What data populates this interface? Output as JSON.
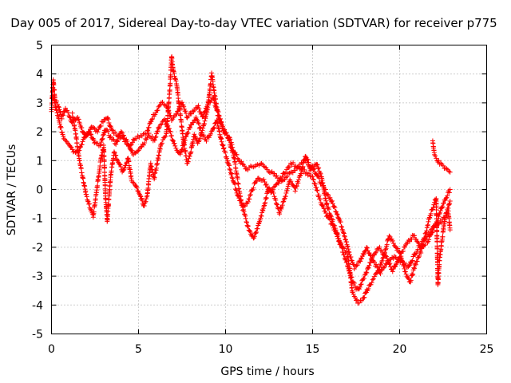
{
  "chart_data": {
    "type": "scatter",
    "title": "Day 005 of 2017, Sidereal Day-to-day VTEC variation (SDTVAR) for receiver p775",
    "xlabel": "GPS time / hours",
    "ylabel": "SDTVAR / TECUs",
    "xlim": [
      0,
      25
    ],
    "ylim": [
      -5,
      5
    ],
    "xticks": [
      "0",
      "5",
      "10",
      "15",
      "20",
      "25"
    ],
    "yticks": [
      "-5",
      "-4",
      "-3",
      "-2",
      "-1",
      "0",
      "1",
      "2",
      "3",
      "4",
      "5"
    ],
    "grid": true,
    "marker": "+",
    "series": [
      {
        "name": "SDTVAR",
        "color": "#ff0000",
        "tracks": [
          [
            [
              0.0,
              2.7
            ],
            [
              0.1,
              3.8
            ],
            [
              0.2,
              3.1
            ],
            [
              0.4,
              2.9
            ],
            [
              0.6,
              2.5
            ],
            [
              0.8,
              2.8
            ],
            [
              1.0,
              2.6
            ],
            [
              1.2,
              2.3
            ],
            [
              1.5,
              2.5
            ],
            [
              1.8,
              2.0
            ],
            [
              2.0,
              1.8
            ],
            [
              2.3,
              2.2
            ],
            [
              2.6,
              2.0
            ],
            [
              2.9,
              2.3
            ],
            [
              3.2,
              2.5
            ],
            [
              3.5,
              2.0
            ],
            [
              3.8,
              1.9
            ],
            [
              4.2,
              1.7
            ],
            [
              4.5,
              1.5
            ],
            [
              4.8,
              1.8
            ],
            [
              5.2,
              1.9
            ],
            [
              5.5,
              2.0
            ],
            [
              5.8,
              2.5
            ],
            [
              6.0,
              2.7
            ],
            [
              6.3,
              3.0
            ],
            [
              6.6,
              2.9
            ],
            [
              6.9,
              2.4
            ],
            [
              7.2,
              2.6
            ],
            [
              7.5,
              3.0
            ],
            [
              7.8,
              2.5
            ],
            [
              8.1,
              2.7
            ],
            [
              8.4,
              2.9
            ],
            [
              8.7,
              2.5
            ],
            [
              9.0,
              3.0
            ],
            [
              9.3,
              3.2
            ],
            [
              9.6,
              2.5
            ],
            [
              9.9,
              2.0
            ],
            [
              10.2,
              1.8
            ],
            [
              10.5,
              1.3
            ],
            [
              10.8,
              1.0
            ],
            [
              11.2,
              0.7
            ],
            [
              11.6,
              0.8
            ],
            [
              12.0,
              0.9
            ],
            [
              12.4,
              0.7
            ],
            [
              12.8,
              0.5
            ],
            [
              13.2,
              0.3
            ],
            [
              13.6,
              0.5
            ],
            [
              14.0,
              0.7
            ],
            [
              14.5,
              1.0
            ],
            [
              15.0,
              0.8
            ],
            [
              15.5,
              0.2
            ],
            [
              16.0,
              -0.3
            ],
            [
              16.4,
              -0.8
            ],
            [
              16.8,
              -1.5
            ],
            [
              17.1,
              -2.2
            ],
            [
              17.4,
              -2.7
            ],
            [
              17.7,
              -2.5
            ],
            [
              18.1,
              -2.0
            ],
            [
              18.5,
              -2.5
            ],
            [
              18.9,
              -2.9
            ],
            [
              19.3,
              -2.5
            ],
            [
              19.7,
              -2.3
            ],
            [
              20.1,
              -2.5
            ],
            [
              20.5,
              -2.7
            ],
            [
              20.9,
              -2.2
            ],
            [
              21.3,
              -1.8
            ],
            [
              21.7,
              -1.5
            ],
            [
              22.1,
              -1.2
            ],
            [
              22.5,
              -0.5
            ],
            [
              22.9,
              0.0
            ]
          ],
          [
            [
              0.1,
              3.2
            ],
            [
              0.3,
              2.7
            ],
            [
              0.5,
              2.2
            ],
            [
              0.7,
              1.8
            ],
            [
              1.0,
              1.6
            ],
            [
              1.3,
              1.3
            ],
            [
              1.6,
              1.4
            ],
            [
              1.9,
              1.8
            ],
            [
              2.2,
              2.0
            ],
            [
              2.5,
              1.6
            ],
            [
              2.8,
              1.5
            ],
            [
              3.1,
              2.1
            ],
            [
              3.4,
              1.8
            ],
            [
              3.7,
              1.6
            ],
            [
              4.0,
              2.0
            ],
            [
              4.4,
              1.6
            ],
            [
              4.7,
              1.2
            ],
            [
              5.0,
              1.4
            ],
            [
              5.3,
              1.6
            ],
            [
              5.6,
              1.9
            ],
            [
              5.9,
              1.7
            ],
            [
              6.2,
              2.2
            ],
            [
              6.5,
              2.4
            ],
            [
              6.8,
              2.0
            ],
            [
              7.1,
              1.5
            ],
            [
              7.4,
              1.2
            ],
            [
              7.7,
              1.8
            ],
            [
              8.0,
              2.2
            ],
            [
              8.3,
              2.5
            ],
            [
              8.6,
              2.0
            ],
            [
              8.9,
              1.7
            ],
            [
              9.2,
              2.0
            ],
            [
              9.5,
              2.4
            ],
            [
              9.8,
              1.6
            ],
            [
              10.1,
              1.0
            ],
            [
              10.4,
              0.4
            ],
            [
              10.7,
              -0.2
            ],
            [
              11.0,
              -0.6
            ],
            [
              11.3,
              -0.4
            ],
            [
              11.6,
              0.1
            ],
            [
              11.9,
              0.4
            ],
            [
              12.2,
              0.3
            ],
            [
              12.6,
              -0.1
            ],
            [
              13.0,
              0.2
            ],
            [
              13.4,
              0.6
            ],
            [
              13.8,
              0.9
            ],
            [
              14.2,
              0.8
            ],
            [
              14.6,
              0.6
            ],
            [
              15.0,
              0.4
            ],
            [
              15.4,
              -0.3
            ],
            [
              15.8,
              -0.9
            ],
            [
              16.2,
              -1.3
            ],
            [
              16.6,
              -1.9
            ],
            [
              17.0,
              -2.6
            ],
            [
              17.3,
              -3.2
            ],
            [
              17.6,
              -3.5
            ],
            [
              18.0,
              -3.0
            ],
            [
              18.4,
              -2.4
            ],
            [
              18.8,
              -2.0
            ],
            [
              19.2,
              -2.3
            ],
            [
              19.6,
              -2.8
            ],
            [
              20.0,
              -2.3
            ],
            [
              20.4,
              -1.9
            ],
            [
              20.8,
              -1.6
            ],
            [
              21.2,
              -2.0
            ],
            [
              21.6,
              -1.8
            ],
            [
              22.0,
              -1.3
            ],
            [
              22.4,
              -1.1
            ],
            [
              22.8,
              -0.8
            ],
            [
              22.9,
              -1.4
            ]
          ],
          [
            [
              1.2,
              2.6
            ],
            [
              1.4,
              1.9
            ],
            [
              1.6,
              1.0
            ],
            [
              1.8,
              0.4
            ],
            [
              2.0,
              -0.2
            ],
            [
              2.2,
              -0.6
            ],
            [
              2.4,
              -0.9
            ],
            [
              2.6,
              0.0
            ],
            [
              2.8,
              0.9
            ],
            [
              3.0,
              1.5
            ],
            [
              3.1,
              -0.2
            ],
            [
              3.2,
              -1.1
            ],
            [
              3.4,
              0.5
            ],
            [
              3.6,
              1.3
            ],
            [
              3.8,
              1.0
            ],
            [
              4.1,
              0.6
            ],
            [
              4.4,
              1.1
            ],
            [
              4.6,
              0.3
            ],
            [
              4.8,
              0.2
            ],
            [
              5.1,
              -0.2
            ],
            [
              5.3,
              -0.6
            ],
            [
              5.5,
              -0.2
            ],
            [
              5.7,
              0.9
            ],
            [
              5.9,
              0.4
            ],
            [
              6.1,
              1.0
            ],
            [
              6.3,
              1.6
            ],
            [
              6.6,
              1.9
            ],
            [
              6.8,
              3.5
            ],
            [
              6.9,
              4.6
            ],
            [
              7.0,
              4.1
            ],
            [
              7.2,
              3.6
            ],
            [
              7.4,
              2.6
            ],
            [
              7.6,
              1.6
            ],
            [
              7.8,
              0.9
            ],
            [
              8.0,
              1.3
            ],
            [
              8.2,
              1.9
            ],
            [
              8.4,
              1.6
            ],
            [
              8.7,
              2.1
            ],
            [
              9.0,
              2.9
            ],
            [
              9.2,
              4.0
            ],
            [
              9.3,
              3.6
            ],
            [
              9.5,
              2.8
            ],
            [
              9.7,
              2.4
            ],
            [
              9.9,
              2.1
            ],
            [
              10.2,
              1.7
            ],
            [
              10.5,
              1.1
            ],
            [
              10.8,
              -0.1
            ],
            [
              11.0,
              -0.7
            ],
            [
              11.3,
              -1.3
            ],
            [
              11.6,
              -1.7
            ],
            [
              11.9,
              -1.2
            ],
            [
              12.2,
              -0.6
            ],
            [
              12.5,
              0.1
            ],
            [
              12.8,
              -0.2
            ],
            [
              13.1,
              -0.8
            ],
            [
              13.4,
              -0.3
            ],
            [
              13.7,
              0.3
            ],
            [
              14.0,
              0.0
            ],
            [
              14.3,
              0.5
            ],
            [
              14.6,
              1.2
            ],
            [
              14.9,
              0.7
            ],
            [
              15.2,
              0.9
            ],
            [
              15.5,
              0.5
            ],
            [
              15.8,
              -0.5
            ],
            [
              16.1,
              -1.0
            ],
            [
              16.4,
              -1.5
            ],
            [
              16.7,
              -2.0
            ],
            [
              17.0,
              -2.2
            ],
            [
              17.3,
              -3.6
            ],
            [
              17.6,
              -3.9
            ],
            [
              17.9,
              -3.8
            ],
            [
              18.2,
              -3.4
            ],
            [
              18.5,
              -3.1
            ],
            [
              18.8,
              -2.8
            ],
            [
              19.1,
              -2.3
            ],
            [
              19.4,
              -1.6
            ],
            [
              19.7,
              -1.9
            ],
            [
              20.0,
              -2.2
            ],
            [
              20.3,
              -2.8
            ],
            [
              20.6,
              -3.2
            ],
            [
              20.9,
              -2.6
            ],
            [
              21.2,
              -2.2
            ],
            [
              21.5,
              -1.5
            ],
            [
              21.8,
              -0.8
            ],
            [
              22.1,
              -0.3
            ],
            [
              22.2,
              -3.3
            ],
            [
              22.3,
              -2.4
            ],
            [
              22.6,
              -1.0
            ],
            [
              22.9,
              -0.4
            ]
          ],
          [
            [
              21.9,
              1.7
            ],
            [
              22.0,
              1.2
            ],
            [
              22.1,
              1.1
            ],
            [
              22.3,
              0.9
            ],
            [
              22.5,
              0.8
            ],
            [
              22.7,
              0.7
            ],
            [
              22.9,
              0.6
            ]
          ]
        ]
      }
    ]
  }
}
